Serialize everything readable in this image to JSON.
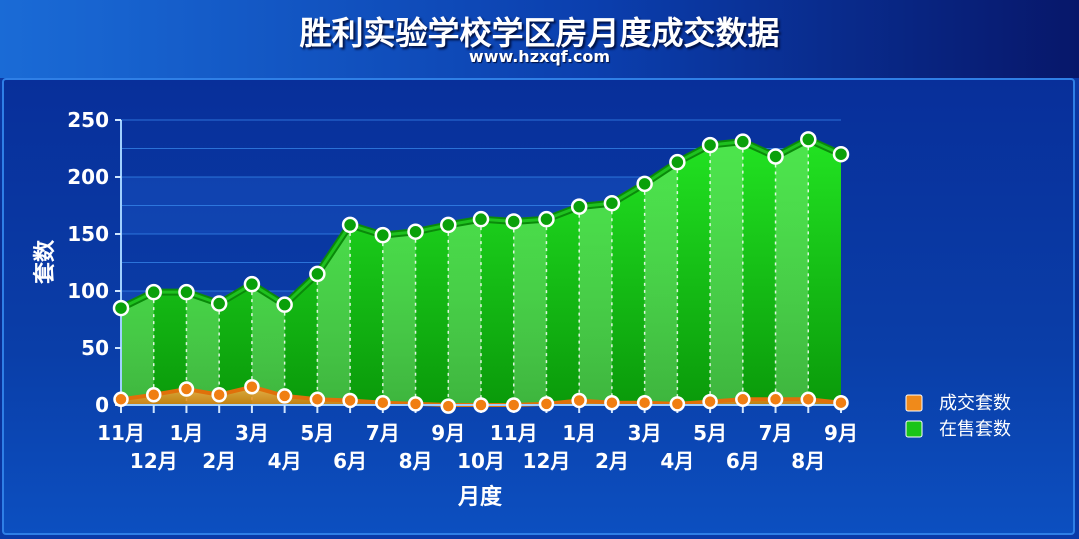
{
  "chart_data": {
    "type": "area",
    "title": "胜利实验学校学区房月度成交数据",
    "subtitle": "www.hzxqf.com",
    "xlabel": "月度",
    "ylabel": "套数",
    "ylim": [
      0,
      250
    ],
    "yticks": [
      0,
      50,
      100,
      150,
      200,
      250
    ],
    "grid": true,
    "legend_position": "right",
    "categories": [
      "11月",
      "12月",
      "1月",
      "2月",
      "3月",
      "4月",
      "5月",
      "6月",
      "7月",
      "8月",
      "9月",
      "10月",
      "11月",
      "12月",
      "1月",
      "2月",
      "3月",
      "4月",
      "5月",
      "6月",
      "7月",
      "8月",
      "9月"
    ],
    "series": [
      {
        "name": "成交套数",
        "color": "#f08a1a",
        "values": [
          5,
          9,
          14,
          9,
          16,
          8,
          5,
          4,
          2,
          1,
          -1,
          0,
          0,
          1,
          4,
          2,
          2,
          1,
          3,
          5,
          5,
          5,
          2
        ]
      },
      {
        "name": "在售套数",
        "color": "#19c419",
        "values": [
          85,
          99,
          99,
          89,
          106,
          88,
          115,
          158,
          149,
          152,
          158,
          163,
          161,
          163,
          174,
          177,
          194,
          213,
          228,
          231,
          218,
          233,
          220
        ]
      }
    ]
  }
}
